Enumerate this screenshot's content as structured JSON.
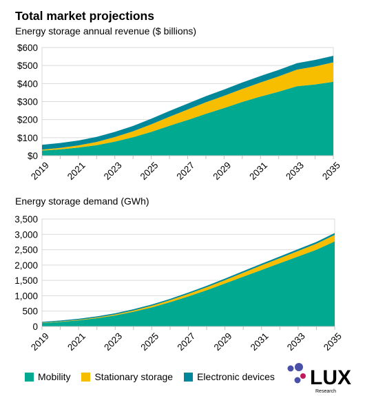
{
  "header": {
    "title": "Total market projections"
  },
  "chart_data": [
    {
      "type": "area",
      "stacked": true,
      "title": "Energy storage annual revenue ($ billions)",
      "x": [
        2019,
        2020,
        2021,
        2022,
        2023,
        2024,
        2025,
        2026,
        2027,
        2028,
        2029,
        2030,
        2031,
        2032,
        2033,
        2034,
        2035
      ],
      "x_tick_labels": [
        "2019",
        "2021",
        "2023",
        "2025",
        "2027",
        "2029",
        "2031",
        "2033",
        "2035"
      ],
      "ylim": [
        0,
        600
      ],
      "y_ticks": [
        0,
        100,
        200,
        300,
        400,
        500,
        600
      ],
      "y_tick_labels": [
        "$0",
        "$100",
        "$200",
        "$300",
        "$400",
        "$500",
        "$600"
      ],
      "series": [
        {
          "name": "Mobility",
          "color": "#00a98f",
          "values": [
            28,
            35,
            45,
            58,
            78,
            102,
            132,
            166,
            198,
            232,
            264,
            298,
            328,
            355,
            385,
            395,
            410
          ]
        },
        {
          "name": "Stationary storage",
          "color": "#f7be00",
          "values": [
            5,
            8,
            12,
            18,
            25,
            33,
            42,
            50,
            58,
            64,
            68,
            72,
            78,
            85,
            92,
            100,
            108
          ]
        },
        {
          "name": "Electronic devices",
          "color": "#00889a",
          "values": [
            27,
            27,
            27,
            28,
            29,
            30,
            31,
            32,
            33,
            34,
            35,
            36,
            36,
            36,
            36,
            36,
            36
          ]
        }
      ]
    },
    {
      "type": "area",
      "stacked": true,
      "title": "Energy storage demand (GWh)",
      "x": [
        2019,
        2020,
        2021,
        2022,
        2023,
        2024,
        2025,
        2026,
        2027,
        2028,
        2029,
        2030,
        2031,
        2032,
        2033,
        2034,
        2035
      ],
      "x_tick_labels": [
        "2019",
        "2021",
        "2023",
        "2025",
        "2027",
        "2029",
        "2031",
        "2033",
        "2035"
      ],
      "ylim": [
        0,
        3500
      ],
      "y_ticks": [
        0,
        500,
        1000,
        1500,
        2000,
        2500,
        3000,
        3500
      ],
      "y_tick_labels": [
        "0",
        "500",
        "1,000",
        "1,500",
        "2,000",
        "2,500",
        "3,000",
        "3,500"
      ],
      "series": [
        {
          "name": "Mobility",
          "color": "#00a98f",
          "values": [
            110,
            150,
            200,
            270,
            360,
            480,
            620,
            790,
            980,
            1180,
            1400,
            1620,
            1840,
            2060,
            2280,
            2500,
            2770
          ]
        },
        {
          "name": "Stationary storage",
          "color": "#f7be00",
          "values": [
            10,
            12,
            16,
            22,
            30,
            40,
            52,
            64,
            80,
            95,
            110,
            130,
            150,
            165,
            180,
            195,
            210
          ]
        },
        {
          "name": "Electronic devices",
          "color": "#00889a",
          "values": [
            30,
            32,
            34,
            36,
            38,
            40,
            42,
            44,
            46,
            48,
            50,
            52,
            54,
            56,
            58,
            60,
            62
          ]
        }
      ]
    }
  ],
  "legend": {
    "items": [
      {
        "label": "Mobility",
        "color": "#00a98f"
      },
      {
        "label": "Stationary storage",
        "color": "#f7be00"
      },
      {
        "label": "Electronic devices",
        "color": "#00889a"
      }
    ]
  },
  "logo": {
    "text": "LUX",
    "tagline": "Research",
    "color": "#4a4fa8",
    "accent": "#c0185c"
  }
}
